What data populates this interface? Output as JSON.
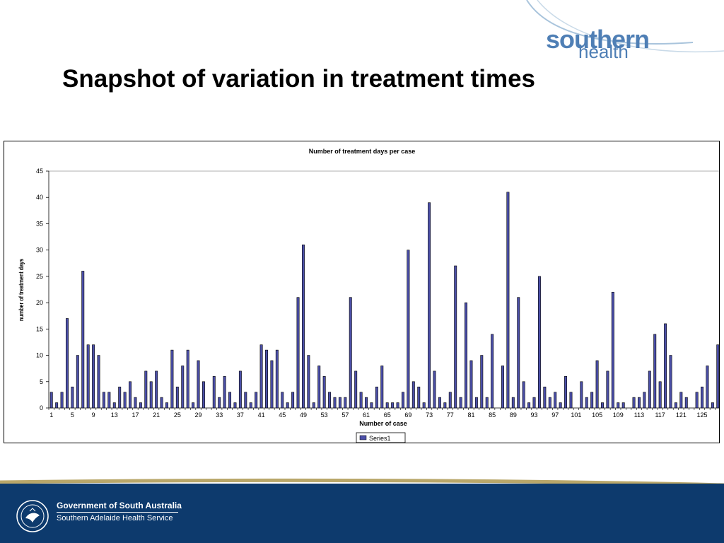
{
  "slide": {
    "title": "Snapshot of variation in treatment times"
  },
  "logo": {
    "word1": "southern",
    "word2": "health",
    "color": "#4f7fb5"
  },
  "footer": {
    "line1": "Government of South Australia",
    "line2": "Southern Adelaide Health Service",
    "crest_text": "SOUTH AUSTRALIA",
    "bg_color": "#0d3a6d",
    "accent_color": "#b9a76a"
  },
  "chart_data": {
    "type": "bar",
    "title": "Number of treatment days per case",
    "xlabel": "Number of case",
    "ylabel": "number of treatment days",
    "ylim": [
      0,
      45
    ],
    "yticks": [
      "0",
      "5",
      "10",
      "15",
      "20",
      "25",
      "30",
      "35",
      "40",
      "45"
    ],
    "xtick_labels": [
      "1",
      "5",
      "9",
      "13",
      "17",
      "21",
      "25",
      "29",
      "33",
      "37",
      "41",
      "45",
      "49",
      "53",
      "57",
      "61",
      "65",
      "69",
      "73",
      "77",
      "81",
      "85",
      "89",
      "93",
      "97",
      "101",
      "105",
      "109",
      "113",
      "117",
      "121",
      "125"
    ],
    "legend": "bottom",
    "grid": false,
    "bar_color": "#4b4fa8",
    "series": [
      {
        "name": "Series1",
        "values": [
          3,
          1,
          3,
          17,
          4,
          10,
          26,
          12,
          12,
          10,
          3,
          3,
          1,
          4,
          3,
          5,
          2,
          1,
          7,
          5,
          7,
          2,
          1,
          11,
          4,
          8,
          11,
          1,
          9,
          5,
          0,
          6,
          2,
          6,
          3,
          1,
          7,
          3,
          1,
          3,
          12,
          11,
          9,
          11,
          3,
          1,
          3,
          21,
          31,
          10,
          1,
          8,
          6,
          3,
          2,
          2,
          2,
          21,
          7,
          3,
          2,
          1,
          4,
          8,
          1,
          1,
          1,
          3,
          30,
          5,
          4,
          1,
          39,
          7,
          2,
          1,
          3,
          27,
          2,
          20,
          9,
          2,
          10,
          2,
          14,
          0,
          8,
          41,
          2,
          21,
          5,
          1,
          2,
          25,
          4,
          2,
          3,
          1,
          6,
          3,
          0,
          5,
          2,
          3,
          9,
          1,
          7,
          22,
          1,
          1,
          0,
          2,
          2,
          3,
          7,
          14,
          5,
          16,
          10,
          1,
          3,
          2,
          0,
          3,
          4,
          8,
          1,
          12
        ]
      }
    ]
  }
}
